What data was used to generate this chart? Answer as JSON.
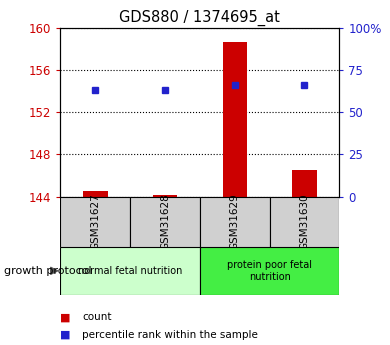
{
  "title": "GDS880 / 1374695_at",
  "samples": [
    "GSM31627",
    "GSM31628",
    "GSM31629",
    "GSM31630"
  ],
  "bar_values": [
    144.5,
    144.2,
    158.6,
    146.5
  ],
  "bar_base": 144,
  "percentile_values": [
    63.0,
    63.0,
    66.0,
    66.0
  ],
  "ylim_left": [
    144,
    160
  ],
  "ylim_right": [
    0,
    100
  ],
  "yticks_left": [
    144,
    148,
    152,
    156,
    160
  ],
  "yticks_right": [
    0,
    25,
    50,
    75,
    100
  ],
  "ytick_labels_right": [
    "0",
    "25",
    "50",
    "75",
    "100%"
  ],
  "bar_color": "#cc0000",
  "marker_color": "#2222cc",
  "groups": [
    {
      "label": "normal fetal nutrition",
      "samples": [
        0,
        1
      ],
      "color": "#ccffcc"
    },
    {
      "label": "protein poor fetal\nnutrition",
      "samples": [
        2,
        3
      ],
      "color": "#44ee44"
    }
  ],
  "legend_items": [
    {
      "label": "count",
      "color": "#cc0000"
    },
    {
      "label": "percentile rank within the sample",
      "color": "#2222cc"
    }
  ],
  "growth_protocol_label": "growth protocol",
  "background_color": "#ffffff",
  "grid_color": "#000000",
  "ylabel_left_color": "#cc0000",
  "ylabel_right_color": "#2222cc",
  "bar_width": 0.35
}
